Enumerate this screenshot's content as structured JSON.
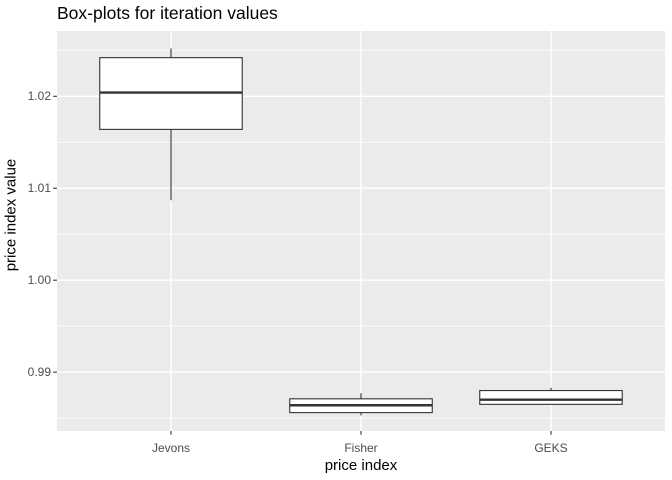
{
  "title": "Box-plots for iteration values",
  "x_axis": {
    "title": "price index",
    "categories": [
      "Jevons",
      "Fisher",
      "GEKS"
    ]
  },
  "y_axis": {
    "title": "price index value",
    "tick_labels": [
      "0.99",
      "1.00",
      "1.01",
      "1.02"
    ],
    "tick_values": [
      0.99,
      1.0,
      1.01,
      1.02
    ],
    "minor_grid_values": [
      0.985,
      0.995,
      1.005,
      1.015,
      1.025
    ]
  },
  "colors": {
    "panel_background": "#EBEBEB",
    "grid_major": "#FFFFFF",
    "grid_minor": "#FFFFFF",
    "box_border": "#333333",
    "box_fill": "#FFFFFF",
    "median": "#333333",
    "axis_tick": "#333333",
    "tick_label": "#4D4D4D",
    "title": "#000000"
  },
  "chart_data": {
    "type": "boxplot",
    "title": "Box-plots for iteration values",
    "xlabel": "price index",
    "ylabel": "price index value",
    "categories": [
      "Jevons",
      "Fisher",
      "GEKS"
    ],
    "ylim": [
      0.9836,
      1.0271
    ],
    "grid": "major+minor, white on grey panel",
    "legend": "none",
    "series": [
      {
        "name": "Jevons",
        "whisker_low": 1.0087,
        "q1": 1.0164,
        "median": 1.0204,
        "q3": 1.0242,
        "whisker_high": 1.0252
      },
      {
        "name": "Fisher",
        "whisker_low": 0.9853,
        "q1": 0.9856,
        "median": 0.9864,
        "q3": 0.9871,
        "whisker_high": 0.9877
      },
      {
        "name": "GEKS",
        "whisker_low": 0.9865,
        "q1": 0.9865,
        "median": 0.987,
        "q3": 0.988,
        "whisker_high": 0.9883
      }
    ]
  }
}
